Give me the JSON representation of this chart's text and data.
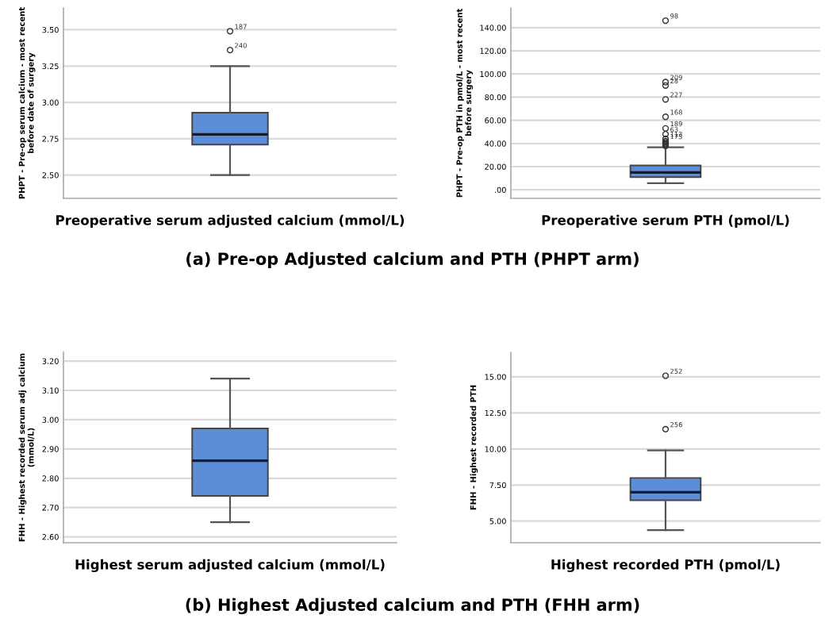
{
  "chart_data": [
    {
      "type": "box",
      "categories": [
        null
      ],
      "xlabel": "Preoperative serum adjusted calcium (mmol/L)",
      "ylabel": "PHPT - Pre-op serum calcium - most recent\nbefore date of surgery",
      "color": "#5b8ed6",
      "boxes": [
        {
          "low": 2.5,
          "q1": 2.71,
          "median": 2.78,
          "q3": 2.93,
          "high": 3.25,
          "outliers": [
            3.49,
            3.36
          ]
        }
      ],
      "ylim": [
        2.34,
        3.65
      ],
      "yticks": [
        {
          "value": 2.5,
          "label": "2.50"
        },
        {
          "value": 2.75,
          "label": "2.75"
        },
        {
          "value": 3.0,
          "label": "3.00"
        },
        {
          "value": 3.25,
          "label": "3.25"
        },
        {
          "value": 3.5,
          "label": "3.50"
        }
      ],
      "grid": "y",
      "annotations": [
        "187",
        "240",
        "(a) Pre-op Adjusted calcium and PTH (PHPT arm)"
      ]
    },
    {
      "type": "box",
      "categories": [
        null
      ],
      "xlabel": "Preoperative serum PTH (pmol/L)",
      "ylabel": "PHPT - Pre-op PTH in pmol/L - most recent\nbefore surgery",
      "color": "#5b8ed6",
      "boxes": [
        {
          "low": 5.7,
          "q1": 10.9,
          "median": 14.9,
          "q3": 21,
          "high": 36.7,
          "outliers": [
            146,
            93,
            90,
            78,
            63,
            53,
            48,
            44,
            42,
            41,
            40,
            39,
            38
          ]
        }
      ],
      "ylim": [
        -7.4,
        157
      ],
      "yticks": [
        {
          "value": 0,
          "label": ".00"
        },
        {
          "value": 20,
          "label": "20.00"
        },
        {
          "value": 40,
          "label": "40.00"
        },
        {
          "value": 60,
          "label": "60.00"
        },
        {
          "value": 80,
          "label": "80.00"
        },
        {
          "value": 100,
          "label": "100.00"
        },
        {
          "value": 120,
          "label": "120.00"
        },
        {
          "value": 140,
          "label": "140.00"
        }
      ],
      "grid": "y",
      "annotations": [
        "98",
        "209",
        "28",
        "227",
        "168",
        "189",
        "63",
        "113",
        "175"
      ]
    },
    {
      "type": "box",
      "categories": [
        null
      ],
      "xlabel": "Highest serum adjusted calcium (mmol/L)",
      "ylabel": "FHH - Highest recorded serum adj calcium\n(mmol/L)",
      "color": "#5b8ed6",
      "boxes": [
        {
          "low": 2.65,
          "q1": 2.74,
          "median": 2.86,
          "q3": 2.97,
          "high": 3.14
        }
      ],
      "ylim": [
        2.58,
        3.23
      ],
      "yticks": [
        {
          "value": 2.6,
          "label": "2.60"
        },
        {
          "value": 2.7,
          "label": "2.70"
        },
        {
          "value": 2.8,
          "label": "2.80"
        },
        {
          "value": 2.9,
          "label": "2.90"
        },
        {
          "value": 3.0,
          "label": "3.00"
        },
        {
          "value": 3.1,
          "label": "3.10"
        },
        {
          "value": 3.2,
          "label": "3.20"
        }
      ],
      "grid": "y",
      "annotations": [
        "(b) Highest Adjusted calcium and PTH (FHH arm)"
      ]
    },
    {
      "type": "box",
      "categories": [
        null
      ],
      "xlabel": "Highest recorded PTH (pmol/L)",
      "ylabel": "FHH - Highest recorded PTH",
      "color": "#5b8ed6",
      "boxes": [
        {
          "low": 4.37,
          "q1": 6.44,
          "median": 7.0,
          "q3": 7.99,
          "high": 9.9,
          "outliers": [
            15.07,
            11.37
          ]
        }
      ],
      "ylim": [
        3.5,
        16.7
      ],
      "yticks": [
        {
          "value": 5,
          "label": "5.00"
        },
        {
          "value": 7.5,
          "label": "7.50"
        },
        {
          "value": 10,
          "label": "10.00"
        },
        {
          "value": 12.5,
          "label": "12.50"
        },
        {
          "value": 15,
          "label": "15.00"
        }
      ],
      "grid": "y",
      "annotations": [
        "252",
        "256"
      ]
    }
  ]
}
